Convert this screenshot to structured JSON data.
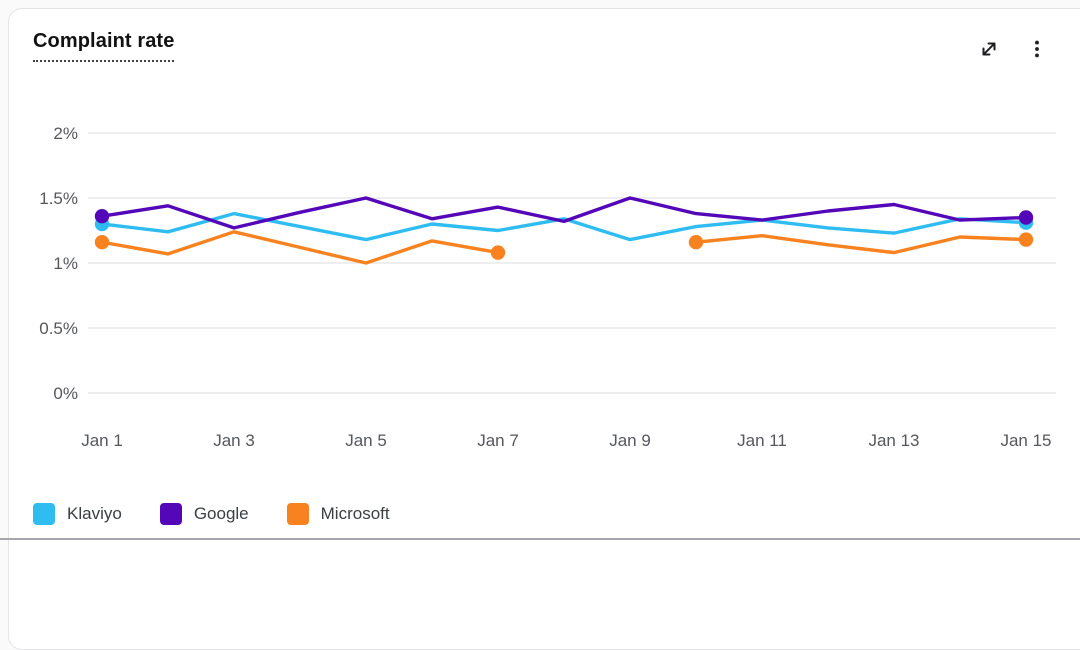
{
  "card": {
    "title": "Complaint rate",
    "icons": {
      "expand": "open-in-full-diagonal-arrow",
      "menu": "vertical-kebab-three-dots"
    }
  },
  "chart_data": {
    "type": "line",
    "title": "Complaint rate",
    "unit": "%",
    "categories": [
      "Jan 1",
      "Jan 2",
      "Jan 3",
      "Jan 4",
      "Jan 5",
      "Jan 6",
      "Jan 7",
      "Jan 8",
      "Jan 9",
      "Jan 10",
      "Jan 11",
      "Jan 12",
      "Jan 13",
      "Jan 14",
      "Jan 15"
    ],
    "x_axis_labels_shown": [
      "Jan 1",
      "Jan 3",
      "Jan 5",
      "Jan 7",
      "Jan 9",
      "Jan 11",
      "Jan 13",
      "Jan 15"
    ],
    "y_ticks": [
      0,
      0.5,
      1,
      1.5,
      2
    ],
    "y_tick_labels": [
      "0%",
      "0.5%",
      "1%",
      "1.5%",
      "2%"
    ],
    "ylim": [
      0,
      2
    ],
    "grid": "horizontal",
    "legend_position": "bottom-left",
    "marker_style": "dots-at-line-endpoints",
    "series": [
      {
        "name": "Klaviyo",
        "color": "#2fbdf1",
        "values": [
          1.3,
          1.24,
          1.38,
          1.28,
          1.18,
          1.3,
          1.25,
          1.34,
          1.18,
          1.28,
          1.33,
          1.27,
          1.23,
          1.34,
          1.31
        ]
      },
      {
        "name": "Google",
        "color": "#5407b8",
        "values": [
          1.36,
          1.44,
          1.27,
          1.39,
          1.5,
          1.34,
          1.43,
          1.32,
          1.5,
          1.38,
          1.33,
          1.4,
          1.45,
          1.33,
          1.35
        ]
      },
      {
        "name": "Microsoft",
        "color": "#f8821f",
        "values": [
          1.16,
          1.07,
          1.24,
          1.12,
          1.0,
          1.17,
          1.08,
          null,
          null,
          1.16,
          1.21,
          1.14,
          1.08,
          1.2,
          1.18
        ]
      }
    ]
  }
}
